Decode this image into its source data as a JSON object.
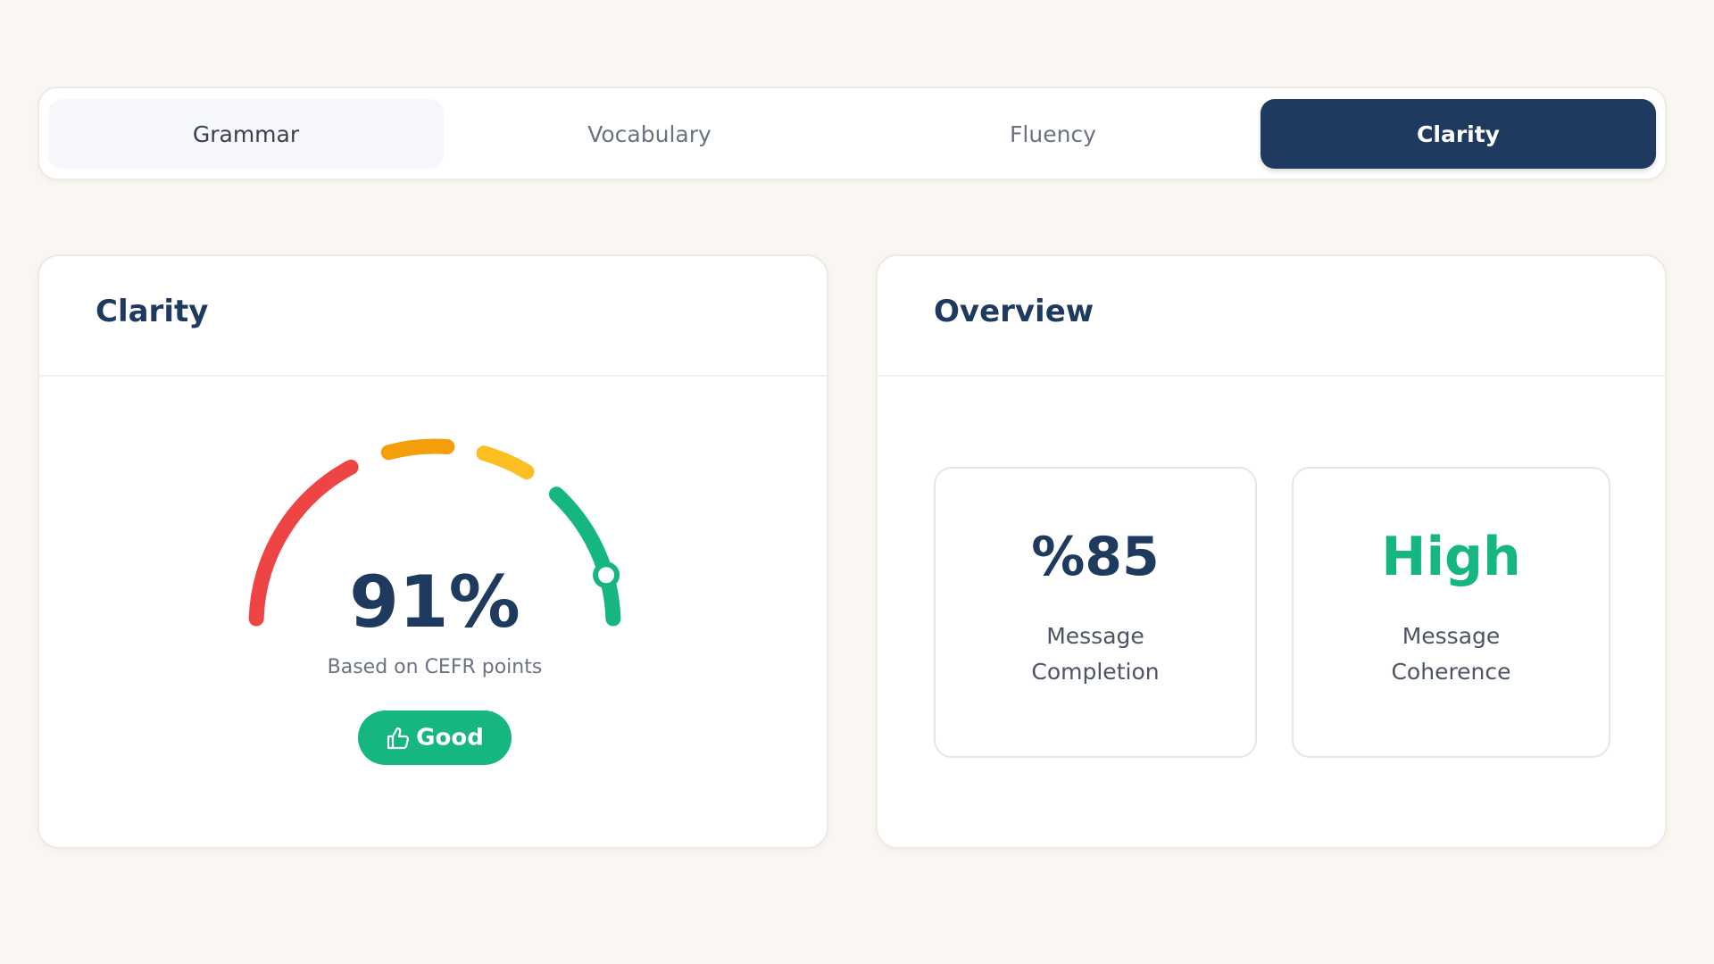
{
  "tabs": [
    "Grammar",
    "Vocabulary",
    "Fluency",
    "Clarity"
  ],
  "clarity_card": {
    "title": "Clarity",
    "score": {
      "value": 91,
      "label": "91%"
    },
    "caption": "Based on CEFR points",
    "badge": "Good"
  },
  "overview_card": {
    "title": "Overview",
    "metrics": [
      {
        "value": "%85",
        "label": "Message Completion"
      },
      {
        "value": "High",
        "label": "Message Coherence"
      }
    ]
  }
}
